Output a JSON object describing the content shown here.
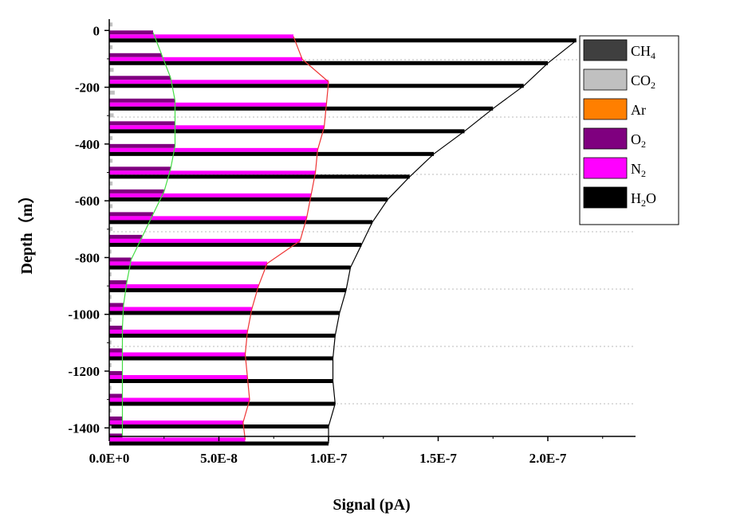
{
  "chart_data": {
    "type": "bar",
    "orientation": "horizontal",
    "stacked": false,
    "title": "",
    "xlabel": "Signal (pA)",
    "ylabel": "Depth（m）",
    "xlim": [
      0,
      2.4e-07
    ],
    "ylim": [
      -1430,
      40
    ],
    "xticks": [
      0,
      5e-08,
      1e-07,
      1.5e-07,
      2e-07
    ],
    "xtick_labels": [
      "0.0E+0",
      "5.0E-8",
      "1.0E-7",
      "1.5E-7",
      "2.0E-7"
    ],
    "yticks": [
      0,
      -200,
      -400,
      -600,
      -800,
      -1000,
      -1200,
      -1400
    ],
    "ytick_labels": [
      "0",
      "-200",
      "-400",
      "-600",
      "-800",
      "-1000",
      "-1200",
      "-1400"
    ],
    "legend_position": "top-right",
    "grid": "horizontal dotted",
    "depths": [
      0,
      -80,
      -160,
      -240,
      -320,
      -400,
      -480,
      -560,
      -640,
      -720,
      -800,
      -880,
      -960,
      -1040,
      -1120,
      -1200,
      -1280,
      -1360,
      -1420
    ],
    "series": [
      {
        "name": "CH4",
        "label": "CH",
        "sub": "4",
        "color": "#3f3f3f",
        "values": [
          0,
          0,
          0,
          0,
          0,
          0,
          0,
          0,
          0,
          0,
          0,
          0,
          0,
          0,
          0,
          0,
          0,
          0,
          0
        ]
      },
      {
        "name": "CO2",
        "label": "CO",
        "sub": "2",
        "color": "#c0c0c0",
        "values": [
          1.5e-09,
          1.5e-09,
          2e-09,
          2.5e-09,
          2e-09,
          1.5e-09,
          1.5e-09,
          1.5e-09,
          1.5e-09,
          1.5e-09,
          1e-09,
          1e-09,
          1e-09,
          1e-09,
          1e-09,
          1e-09,
          1e-09,
          1e-09,
          1e-09
        ]
      },
      {
        "name": "Ar",
        "label": "Ar",
        "sub": "",
        "color": "#ff7f00",
        "values": [
          0,
          0,
          0,
          0,
          0,
          0,
          0,
          0,
          0,
          0,
          0,
          0,
          0,
          0,
          0,
          0,
          0,
          0,
          0
        ]
      },
      {
        "name": "O2",
        "label": "O",
        "sub": "2",
        "color": "#7f007f",
        "values": [
          2e-08,
          2.4e-08,
          2.8e-08,
          3e-08,
          3e-08,
          3e-08,
          2.8e-08,
          2.5e-08,
          2e-08,
          1.5e-08,
          1e-08,
          8e-09,
          6.5e-09,
          6e-09,
          6e-09,
          6e-09,
          6e-09,
          6e-09,
          6e-09
        ]
      },
      {
        "name": "N2",
        "label": "N",
        "sub": "2",
        "color": "#ff00ff",
        "values": [
          8.4e-08,
          8.8e-08,
          1e-07,
          9.9e-08,
          9.8e-08,
          9.5e-08,
          9.4e-08,
          9.2e-08,
          9e-08,
          8.7e-08,
          7.2e-08,
          6.8e-08,
          6.5e-08,
          6.3e-08,
          6.2e-08,
          6.3e-08,
          6.4e-08,
          6.1e-08,
          6.2e-08
        ]
      },
      {
        "name": "H2O",
        "label": "H",
        "sub": "2",
        "tail": "O",
        "color": "#000000",
        "values": [
          2.13e-07,
          2e-07,
          1.89e-07,
          1.75e-07,
          1.62e-07,
          1.48e-07,
          1.37e-07,
          1.27e-07,
          1.2e-07,
          1.15e-07,
          1.1e-07,
          1.08e-07,
          1.05e-07,
          1.03e-07,
          1.02e-07,
          1.02e-07,
          1.03e-07,
          1e-07,
          1e-07
        ]
      }
    ],
    "trend_lines": [
      {
        "series": "O2",
        "color": "#44dd44"
      },
      {
        "series": "N2",
        "color": "#ee3333"
      },
      {
        "series": "H2O",
        "color": "#000000"
      }
    ]
  }
}
